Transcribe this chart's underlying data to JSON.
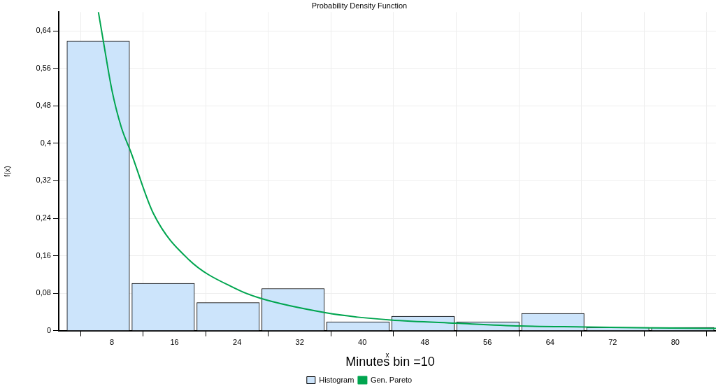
{
  "chart_data": {
    "type": "histogram",
    "title": "Probability Density Function",
    "xlabel": "x",
    "ylabel": "f(x)",
    "annotations": [
      "Minutes bin =10"
    ],
    "bins": [
      2.1,
      10.4,
      18.7,
      27.0,
      35.3,
      43.6,
      51.9,
      60.2,
      68.5,
      76.8,
      85.1
    ],
    "series": [
      {
        "name": "Histogram",
        "color": "#cce4fb",
        "values": [
          0.618,
          0.101,
          0.06,
          0.09,
          0.019,
          0.031,
          0.019,
          0.037,
          0.007,
          0.007
        ]
      },
      {
        "type": "line",
        "name": "Gen. Pareto",
        "color": "#00a54f",
        "x": [
          6.27,
          6.9,
          8,
          9.2,
          10.4,
          13.3,
          17.8,
          23.9,
          27,
          35.4,
          39.4,
          43.6,
          52,
          60.2,
          68.5,
          76.8,
          85.2
        ],
        "values": [
          0.68,
          0.618,
          0.513,
          0.434,
          0.382,
          0.25,
          0.152,
          0.089,
          0.069,
          0.038,
          0.029,
          0.023,
          0.016,
          0.01,
          0.008,
          0.006,
          0.005
        ]
      }
    ],
    "xlim": [
      1.2,
      85.2
    ],
    "xticks": [
      8,
      16,
      24,
      32,
      40,
      48,
      56,
      64,
      72,
      80
    ],
    "ylim": [
      0,
      0.68
    ],
    "yticks": [
      0,
      {
        "value": 0.08,
        "label": "0,08"
      },
      {
        "value": 0.16,
        "label": "0,16"
      },
      {
        "value": 0.24,
        "label": "0,24"
      },
      {
        "value": 0.32,
        "label": "0,32"
      },
      {
        "value": 0.4,
        "label": "0,4"
      },
      {
        "value": 0.48,
        "label": "0,48"
      },
      {
        "value": 0.56,
        "label": "0,56"
      },
      {
        "value": 0.64,
        "label": "0,64"
      }
    ],
    "grid": true,
    "legend": "bottom"
  }
}
